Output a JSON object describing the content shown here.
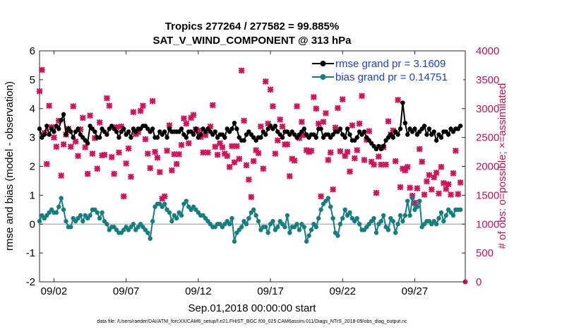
{
  "chart_data": {
    "type": "line",
    "title": "Tropics 277264 / 277582 = 99.885%",
    "subtitle": "SAT_V_WIND_COMPONENT @ 313 hPa",
    "xlabel": "Sep.01,2018 00:00:00 start",
    "ylabel_left": "rmse and bias (model - observation)",
    "ylabel_right": "# of obs: o=possible; ×=assimilated",
    "footnote": "data file: /Users/raeder/DAI/ATM_forcXX/CAM6_setup/f.e21.FHIST_BGC.f09_025.CAM6assim.011/Diags_NTrS_2018-09/obs_diag_output.nc",
    "x_start_day": 1,
    "x_end_day": 30.5,
    "ylim_left": [
      -2,
      6
    ],
    "yticks_left": [
      "-2",
      "-1",
      "0",
      "1",
      "2",
      "3",
      "4",
      "5",
      "6"
    ],
    "ylim_right": [
      0,
      4000
    ],
    "yticks_right": [
      "0",
      "500",
      "1000",
      "1500",
      "2000",
      "2500",
      "3000",
      "3500",
      "4000"
    ],
    "xticks": [
      {
        "day": 2,
        "label": "09/02"
      },
      {
        "day": 7,
        "label": "09/07"
      },
      {
        "day": 12,
        "label": "09/12"
      },
      {
        "day": 17,
        "label": "09/17"
      },
      {
        "day": 22,
        "label": "09/22"
      },
      {
        "day": 27,
        "label": "09/27"
      }
    ],
    "colors": {
      "rmse": "#000000",
      "bias": "#147e7e",
      "obs": "#d2125a",
      "zero": "#aaaaaa",
      "legend_text": "#1a3fd8"
    },
    "series": [
      {
        "name": "rmse grand pr = 3.1609",
        "key": "rmse",
        "axis": "left",
        "values": [
          3.3,
          3.0,
          3.1,
          3.4,
          3.1,
          3.3,
          3.2,
          3.4,
          3.3,
          3.6,
          3.8,
          3.1,
          3.3,
          3.2,
          3.0,
          3.2,
          3.3,
          3.1,
          3.0,
          2.9,
          2.8,
          3.4,
          3.3,
          3.2,
          3.0,
          3.0,
          3.3,
          3.2,
          3.1,
          3.3,
          3.4,
          3.3,
          3.2,
          3.0,
          3.2,
          3.3,
          3.1,
          3.2,
          3.0,
          3.3,
          3.2,
          3.3,
          3.3,
          3.4,
          3.4,
          3.3,
          3.2,
          3.3,
          3.0,
          3.0,
          3.2,
          3.1,
          3.2,
          3.0,
          3.3,
          3.2,
          3.2,
          3.2,
          3.2,
          3.3,
          3.1,
          3.0,
          3.2,
          3.2,
          3.1,
          3.3,
          3.0,
          3.1,
          3.3,
          3.2,
          3.3,
          3.2,
          3.1,
          3.2,
          3.0,
          3.1,
          3.1,
          3.0,
          3.3,
          3.2,
          3.3,
          3.5,
          3.3,
          3.0,
          2.9,
          2.9,
          3.1,
          3.2,
          3.1,
          3.0,
          2.9,
          3.0,
          3.0,
          3.2,
          3.1,
          3.3,
          3.4,
          3.3,
          3.4,
          3.2,
          3.1,
          3.0,
          3.2,
          3.2,
          3.1,
          3.2,
          3.1,
          3.0,
          3.1,
          3.2,
          3.3,
          3.1,
          3.0,
          3.1,
          3.1,
          3.0,
          3.3,
          3.3,
          3.0,
          3.1,
          3.1,
          3.0,
          3.1,
          3.2,
          3.2,
          3.3,
          3.1,
          3.0,
          3.3,
          3.1,
          2.9,
          2.9,
          3.0,
          3.2,
          3.1,
          3.2,
          3.0,
          2.9,
          2.8,
          2.7,
          2.6,
          2.7,
          2.6,
          2.7,
          2.9,
          3.0,
          3.1,
          3.0,
          3.2,
          3.1,
          3.3,
          4.2,
          3.5,
          3.1,
          3.3,
          3.2,
          3.3,
          3.1,
          3.2,
          3.3,
          3.4,
          3.1,
          3.3,
          3.1,
          3.2,
          2.9,
          3.1,
          3.0,
          3.2,
          3.2,
          3.1,
          3.3,
          3.2,
          3.3,
          3.3,
          3.4
        ]
      },
      {
        "name": "bias grand pr = 0.14751",
        "key": "bias",
        "axis": "left",
        "values": [
          0.1,
          0.3,
          0.2,
          0.3,
          0.4,
          0.5,
          0.4,
          0.4,
          0.6,
          0.9,
          0.5,
          0.1,
          -0.1,
          -0.1,
          0.2,
          0.1,
          0.2,
          0.3,
          0.1,
          0.3,
          0.2,
          0.3,
          0.5,
          0.5,
          0.4,
          0.2,
          0.4,
          0.1,
          0.0,
          -0.2,
          -0.1,
          -0.1,
          -0.2,
          -0.3,
          -0.3,
          -0.2,
          -0.1,
          -0.2,
          -0.1,
          0.0,
          -0.2,
          -0.1,
          0.0,
          -0.1,
          -0.2,
          -0.3,
          -0.5,
          0.1,
          0.6,
          0.7,
          0.7,
          0.6,
          0.7,
          0.5,
          0.4,
          0.1,
          0.3,
          0.2,
          0.4,
          0.3,
          0.7,
          0.8,
          0.6,
          0.5,
          0.6,
          0.5,
          0.4,
          0.3,
          0.3,
          0.2,
          0.1,
          0.0,
          -0.1,
          -0.1,
          0.0,
          0.0,
          -0.1,
          0.0,
          0.1,
          0.0,
          0.2,
          -0.6,
          -0.3,
          -0.2,
          -0.1,
          0.1,
          0.0,
          0.2,
          0.4,
          0.5,
          0.3,
          0.1,
          -0.2,
          -0.1,
          -0.1,
          -0.3,
          0.0,
          0.1,
          -0.2,
          -0.1,
          0.1,
          0.0,
          -0.1,
          0.3,
          -0.3,
          -0.1,
          -0.1,
          0.0,
          -0.2,
          0.0,
          -0.1,
          -0.6,
          -0.4,
          -0.2,
          0.0,
          -0.1,
          0.2,
          0.5,
          0.7,
          0.8,
          0.9,
          0.6,
          0.2,
          -0.3,
          -0.4,
          0.0,
          0.2,
          0.5,
          0.3,
          0.4,
          0.2,
          0.1,
          0.2,
          0.0,
          -0.2,
          -0.2,
          -0.1,
          0.0,
          0.1,
          0.2,
          -0.3,
          0.0,
          0.1,
          0.3,
          -0.1,
          -0.2,
          0.2,
          0.1,
          -0.3,
          0.0,
          0.3,
          0.1,
          0.3,
          0.8,
          0.3,
          0.9,
          0.5,
          0.6,
          0.8,
          -0.1,
          0.0,
          0.1,
          0.1,
          0.0,
          0.1,
          0.0,
          0.2,
          0.4,
          0.1,
          0.3,
          0.5,
          0.4,
          0.3,
          0.5,
          0.5,
          0.5
        ]
      },
      {
        "name": "obs assimilated",
        "key": "obs",
        "axis": "right",
        "values": [
          3300,
          3670,
          2580,
          2040,
          3050,
          2680,
          2500,
          2340,
          2790,
          1840,
          2380,
          2550,
          2650,
          2340,
          3040,
          2430,
          2180,
          2640,
          2840,
          2330,
          1870,
          2880,
          2220,
          2490,
          1960,
          2760,
          2190,
          2200,
          3180,
          3050,
          2160,
          1870,
          2680,
          2240,
          2690,
          1480,
          2050,
          2310,
          1820,
          2940,
          2560,
          2590,
          2960,
          3050,
          2470,
          2220,
          1970,
          3130,
          2250,
          2150,
          1900,
          1440,
          1480,
          2270,
          2710,
          1930,
          2210,
          2040,
          2210,
          2370,
          2830,
          2740,
          2400,
          2840,
          2890,
          2640,
          2620,
          2510,
          2240,
          2540,
          2240,
          2690,
          3060,
          2340,
          2200,
          2400,
          2330,
          2220,
          2180,
          1990,
          2350,
          2070,
          2350,
          2130,
          3660,
          2790,
          2020,
          1770,
          1470,
          2090,
          2280,
          2230,
          2690,
          1960,
          3470,
          2740,
          3330,
          3040,
          2220,
          2450,
          2810,
          2690,
          2380,
          2380,
          1830,
          2130,
          2100,
          3040,
          2490,
          2770,
          2540,
          2280,
          2250,
          2270,
          3200,
          3000,
          2740,
          1480,
          2770,
          2920,
          2110,
          2240,
          1600,
          2670,
          3010,
          2260,
          3160,
          2180,
          2250,
          1910,
          2710,
          2140,
          2280,
          2740,
          3220,
          2110,
          2460,
          2610,
          2080,
          2030,
          1540,
          2170,
          2030,
          2330,
          2030,
          2780,
          2550,
          2620,
          2090,
          3150,
          1640,
          1960,
          1930,
          1990,
          1630,
          1490,
          1370,
          1620,
          2300,
          2080,
          1510,
          1740,
          1850,
          1600,
          1810,
          1890,
          1530,
          1990,
          1710,
          1610,
          1690,
          1510,
          1880,
          2270,
          1520,
          1720
        ]
      }
    ],
    "legend": {
      "placement": "top-right"
    }
  }
}
